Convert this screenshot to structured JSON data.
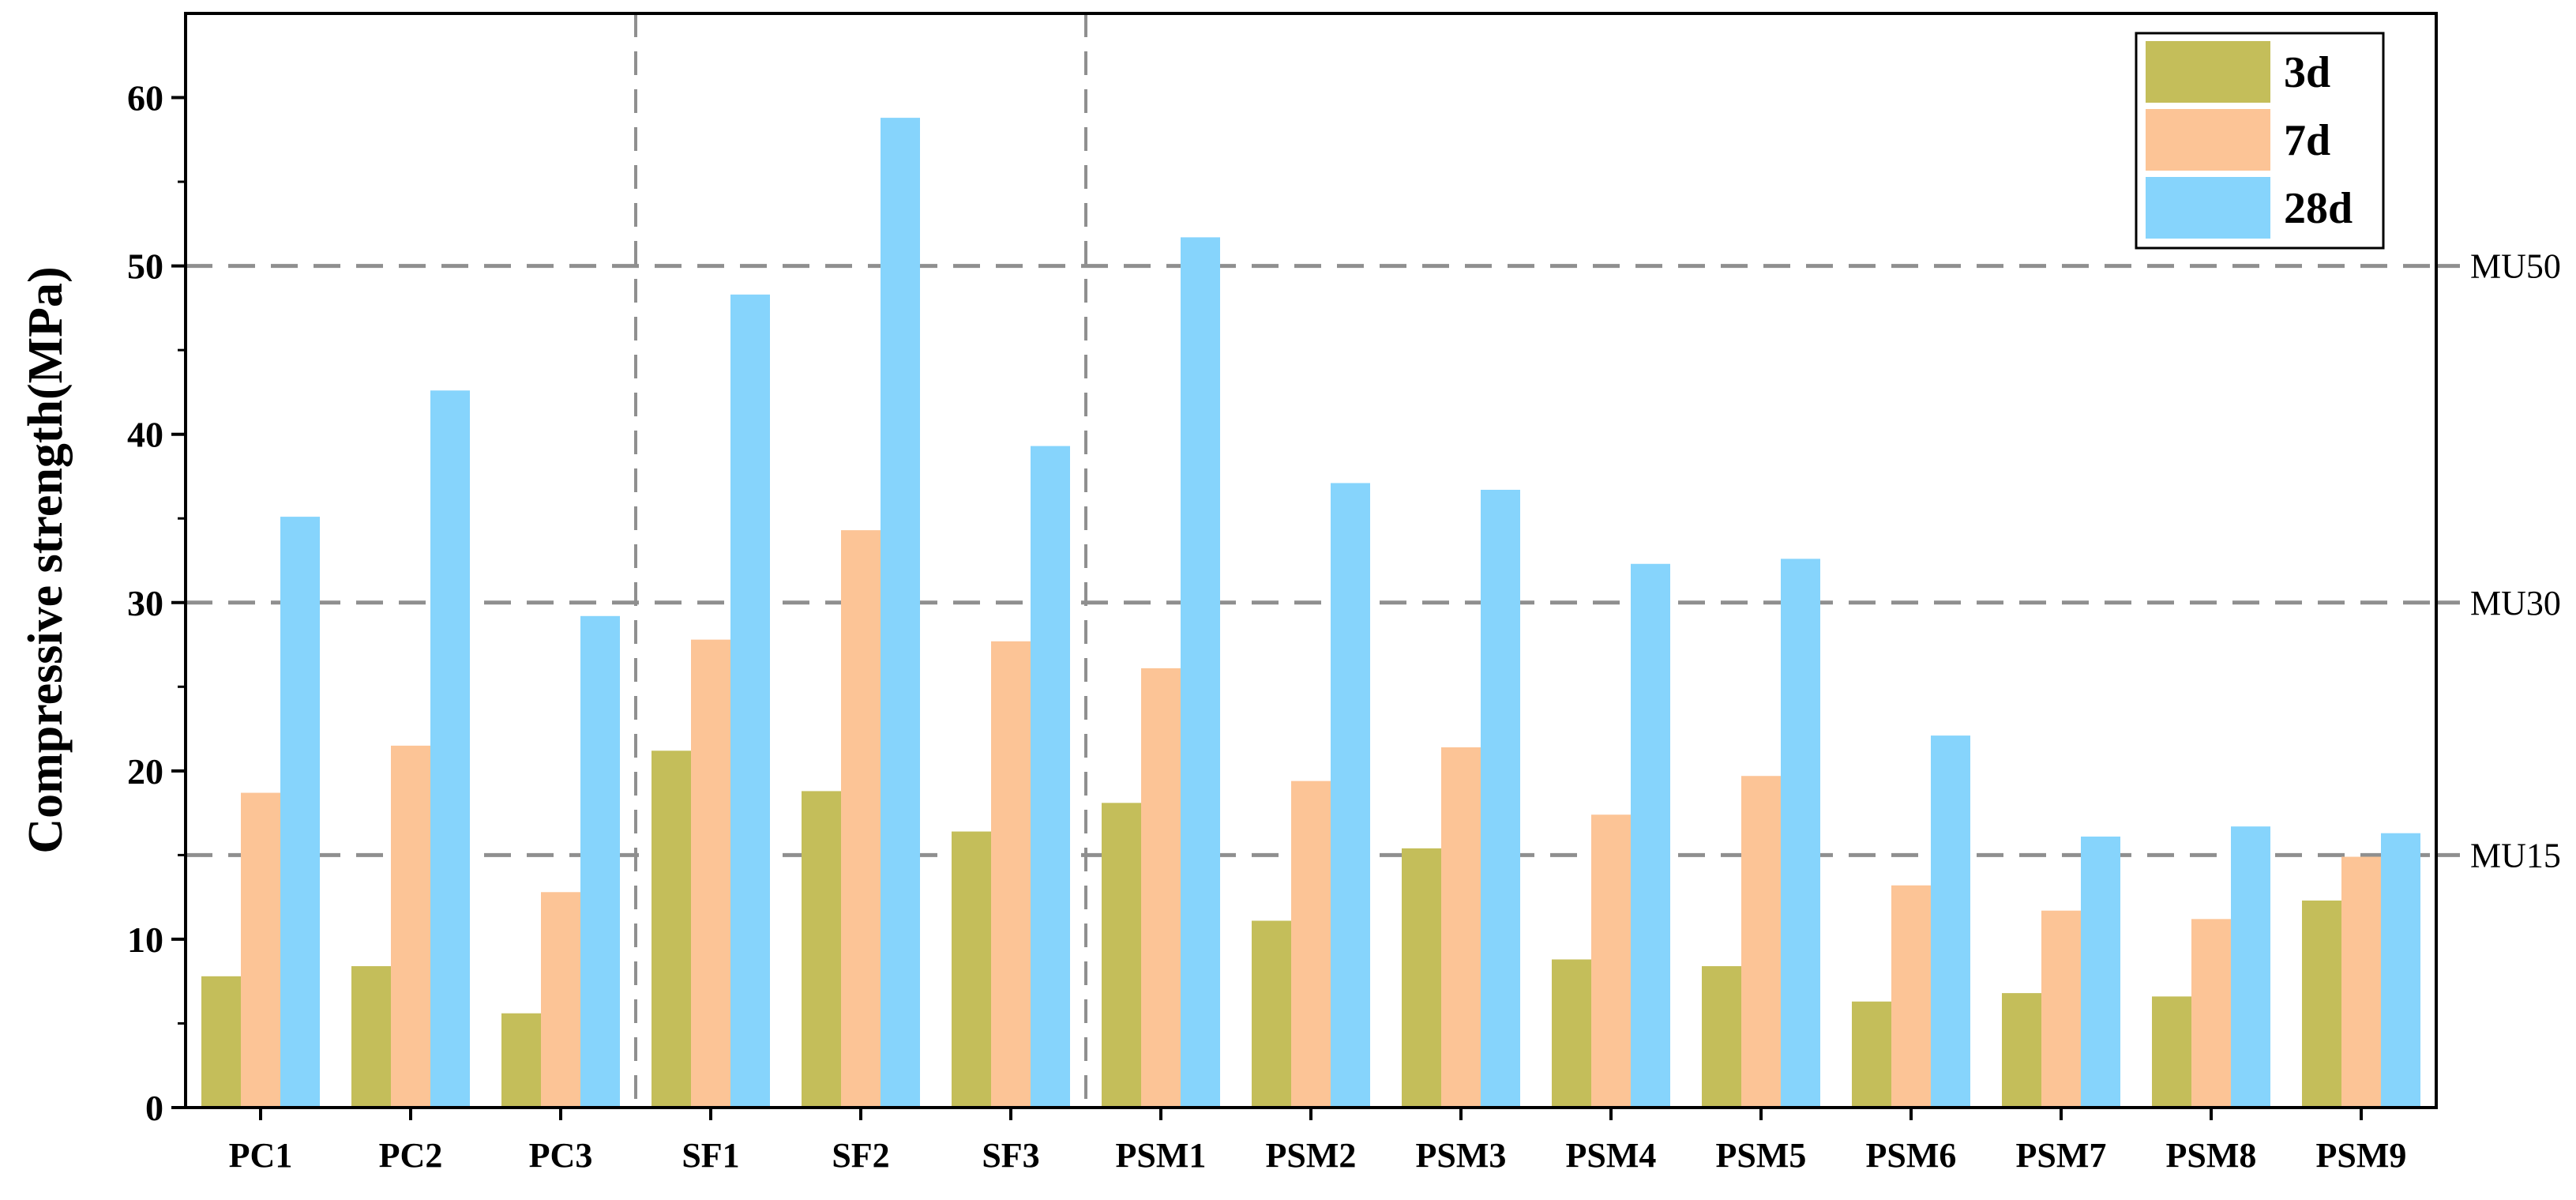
{
  "chart_data": {
    "type": "bar",
    "ylabel": "Compressive strength(MPa)",
    "xlabel": "",
    "ylim": [
      0,
      65
    ],
    "yticks": [
      0,
      10,
      20,
      30,
      40,
      50,
      60
    ],
    "categories": [
      "PC1",
      "PC2",
      "PC3",
      "SF1",
      "SF2",
      "SF3",
      "PSM1",
      "PSM2",
      "PSM3",
      "PSM4",
      "PSM5",
      "PSM6",
      "PSM7",
      "PSM8",
      "PSM9"
    ],
    "series": [
      {
        "name": "3d",
        "color": "#c4be5a",
        "values": [
          7.8,
          8.4,
          5.6,
          21.2,
          18.8,
          16.4,
          18.1,
          11.1,
          15.4,
          8.8,
          8.4,
          6.3,
          6.8,
          6.6,
          12.3
        ]
      },
      {
        "name": "7d",
        "color": "#fcc496",
        "values": [
          18.7,
          21.5,
          12.8,
          27.8,
          34.3,
          27.7,
          26.1,
          19.4,
          21.4,
          17.4,
          19.7,
          13.2,
          11.7,
          11.2,
          14.9
        ]
      },
      {
        "name": "28d",
        "color": "#86d4fc",
        "values": [
          35.1,
          42.6,
          29.2,
          48.3,
          58.8,
          39.3,
          51.7,
          37.1,
          36.7,
          32.3,
          32.6,
          22.1,
          16.1,
          16.7,
          16.3
        ]
      }
    ],
    "reference_lines": [
      {
        "label": "MU50",
        "value": 50
      },
      {
        "label": "MU30",
        "value": 30
      },
      {
        "label": "MU15",
        "value": 15
      }
    ],
    "group_separators_after_index": [
      2,
      5
    ],
    "legend_position": "top-right",
    "grid": false
  }
}
